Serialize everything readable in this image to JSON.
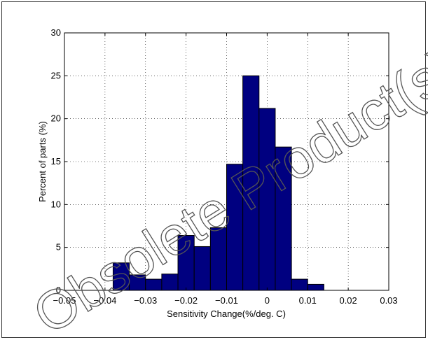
{
  "chart_data": {
    "type": "bar",
    "title": "",
    "xlabel": "Sensitivity Change(%/deg. C)",
    "ylabel": "Percent of parts (%)",
    "xlim": [
      -0.05,
      0.03
    ],
    "ylim": [
      0,
      30
    ],
    "xticks": [
      -0.05,
      -0.04,
      -0.03,
      -0.02,
      -0.01,
      0,
      0.01,
      0.02,
      0.03
    ],
    "xtick_labels": [
      "−0.05",
      "−0.04",
      "−0.03",
      "−0.02",
      "−0.01",
      "0",
      "0.01",
      "0.02",
      "0.03"
    ],
    "yticks": [
      0,
      5,
      10,
      15,
      20,
      25,
      30
    ],
    "ytick_labels": [
      "0",
      "5",
      "10",
      "15",
      "20",
      "25",
      "30"
    ],
    "grid": true,
    "bin_width": 0.004,
    "bins": [
      {
        "x_start": -0.038,
        "value": 3.2
      },
      {
        "x_start": -0.034,
        "value": 1.8
      },
      {
        "x_start": -0.03,
        "value": 1.3
      },
      {
        "x_start": -0.026,
        "value": 1.9
      },
      {
        "x_start": -0.022,
        "value": 6.4
      },
      {
        "x_start": -0.018,
        "value": 5.1
      },
      {
        "x_start": -0.014,
        "value": 7.3
      },
      {
        "x_start": -0.01,
        "value": 14.7
      },
      {
        "x_start": -0.006,
        "value": 25.0
      },
      {
        "x_start": -0.002,
        "value": 21.2
      },
      {
        "x_start": 0.002,
        "value": 16.7
      },
      {
        "x_start": 0.006,
        "value": 1.3
      },
      {
        "x_start": 0.01,
        "value": 0.7
      }
    ],
    "bar_color": "#000080"
  },
  "watermark": {
    "text": "Obsolete Product(s) - Obsolete Product(s)"
  }
}
